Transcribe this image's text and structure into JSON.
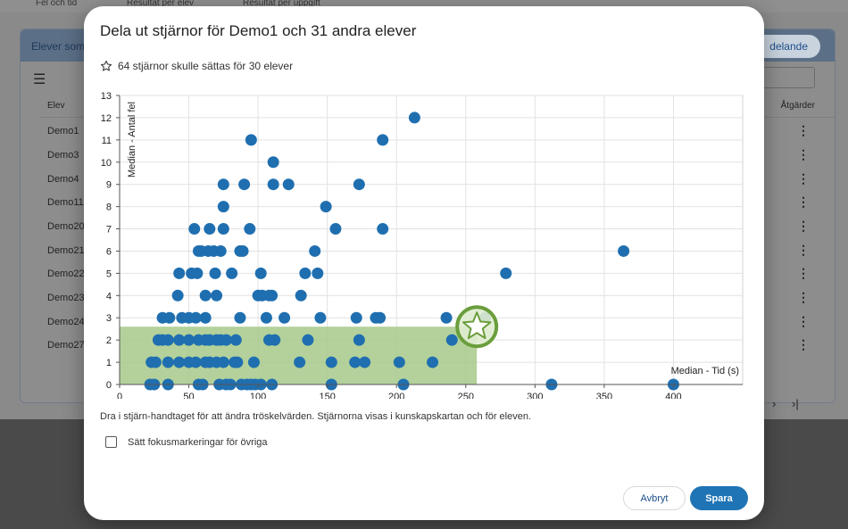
{
  "background": {
    "tabs": [
      "Fel och tid",
      "Resultat per elev",
      "Resultat per uppgift"
    ],
    "card_title": "Elever som",
    "share_label": "delande",
    "columns": {
      "student": "Elev",
      "actions": "Åtgärder"
    },
    "rows": [
      "Demo1",
      "Demo3",
      "Demo4",
      "Demo11",
      "Demo20",
      "Demo21",
      "Demo22",
      "Demo23",
      "Demo24",
      "Demo27"
    ],
    "pager": {
      "next": "›",
      "last": "›|"
    }
  },
  "dialog": {
    "title": "Dela ut stjärnor för Demo1 och 31 andra elever",
    "summary": "64 stjärnor skulle sättas för 30 elever",
    "summary_icon": "star-outline-icon",
    "hint": "Dra i stjärn-handtaget för att ändra tröskelvärden. Stjärnorna visas i kunskapskartan och för eleven.",
    "focus_label": "Sätt fokusmarkeringar för övriga",
    "cancel_label": "Avbryt",
    "save_label": "Spara"
  },
  "colors": {
    "point": "#1f6fb0",
    "threshold_fill": "#a7c98a",
    "handle": "#6a9e3c",
    "save": "#1f74b5"
  },
  "chart_data": {
    "type": "scatter",
    "xlabel": "Median - Tid (s)",
    "ylabel": "Median - Antal fel",
    "xlim": [
      0,
      450
    ],
    "ylim": [
      0,
      13
    ],
    "xticks": [
      0,
      50,
      100,
      150,
      200,
      250,
      300,
      350,
      400
    ],
    "yticks": [
      0,
      1,
      2,
      3,
      4,
      5,
      6,
      7,
      8,
      9,
      10,
      11,
      12,
      13
    ],
    "grid": true,
    "threshold": {
      "x": 258,
      "y": 2.6
    },
    "points": [
      [
        22,
        0
      ],
      [
        25,
        0
      ],
      [
        35,
        0
      ],
      [
        57,
        0
      ],
      [
        60,
        0
      ],
      [
        72,
        0
      ],
      [
        77,
        0
      ],
      [
        80,
        0
      ],
      [
        88,
        0
      ],
      [
        92,
        0
      ],
      [
        95,
        0
      ],
      [
        98,
        0
      ],
      [
        102,
        0
      ],
      [
        110,
        0
      ],
      [
        153,
        0
      ],
      [
        205,
        0
      ],
      [
        312,
        0
      ],
      [
        400,
        0
      ],
      [
        23,
        1
      ],
      [
        26,
        1
      ],
      [
        35,
        1
      ],
      [
        43,
        1
      ],
      [
        50,
        1
      ],
      [
        55,
        1
      ],
      [
        62,
        1
      ],
      [
        65,
        1
      ],
      [
        70,
        1
      ],
      [
        75,
        1
      ],
      [
        83,
        1
      ],
      [
        85,
        1
      ],
      [
        97,
        1
      ],
      [
        130,
        1
      ],
      [
        153,
        1
      ],
      [
        170,
        1
      ],
      [
        177,
        1
      ],
      [
        202,
        1
      ],
      [
        226,
        1
      ],
      [
        28,
        2
      ],
      [
        31,
        2
      ],
      [
        35,
        2
      ],
      [
        43,
        2
      ],
      [
        50,
        2
      ],
      [
        57,
        2
      ],
      [
        62,
        2
      ],
      [
        65,
        2
      ],
      [
        70,
        2
      ],
      [
        73,
        2
      ],
      [
        77,
        2
      ],
      [
        84,
        2
      ],
      [
        108,
        2
      ],
      [
        112,
        2
      ],
      [
        136,
        2
      ],
      [
        173,
        2
      ],
      [
        240,
        2
      ],
      [
        31,
        3
      ],
      [
        36,
        3
      ],
      [
        45,
        3
      ],
      [
        50,
        3
      ],
      [
        55,
        3
      ],
      [
        62,
        3
      ],
      [
        87,
        3
      ],
      [
        106,
        3
      ],
      [
        119,
        3
      ],
      [
        145,
        3
      ],
      [
        171,
        3
      ],
      [
        185,
        3
      ],
      [
        188,
        3
      ],
      [
        236,
        3
      ],
      [
        264,
        3
      ],
      [
        42,
        4
      ],
      [
        62,
        4
      ],
      [
        70,
        4
      ],
      [
        100,
        4
      ],
      [
        103,
        4
      ],
      [
        108,
        4
      ],
      [
        110,
        4
      ],
      [
        131,
        4
      ],
      [
        43,
        5
      ],
      [
        52,
        5
      ],
      [
        56,
        5
      ],
      [
        69,
        5
      ],
      [
        81,
        5
      ],
      [
        102,
        5
      ],
      [
        134,
        5
      ],
      [
        143,
        5
      ],
      [
        279,
        5
      ],
      [
        57,
        6
      ],
      [
        59,
        6
      ],
      [
        64,
        6
      ],
      [
        68,
        6
      ],
      [
        73,
        6
      ],
      [
        87,
        6
      ],
      [
        89,
        6
      ],
      [
        141,
        6
      ],
      [
        364,
        6
      ],
      [
        54,
        7
      ],
      [
        65,
        7
      ],
      [
        75,
        7
      ],
      [
        94,
        7
      ],
      [
        156,
        7
      ],
      [
        190,
        7
      ],
      [
        75,
        8
      ],
      [
        149,
        8
      ],
      [
        75,
        9
      ],
      [
        90,
        9
      ],
      [
        111,
        9
      ],
      [
        122,
        9
      ],
      [
        173,
        9
      ],
      [
        111,
        10
      ],
      [
        95,
        11
      ],
      [
        190,
        11
      ],
      [
        213,
        12
      ]
    ]
  }
}
